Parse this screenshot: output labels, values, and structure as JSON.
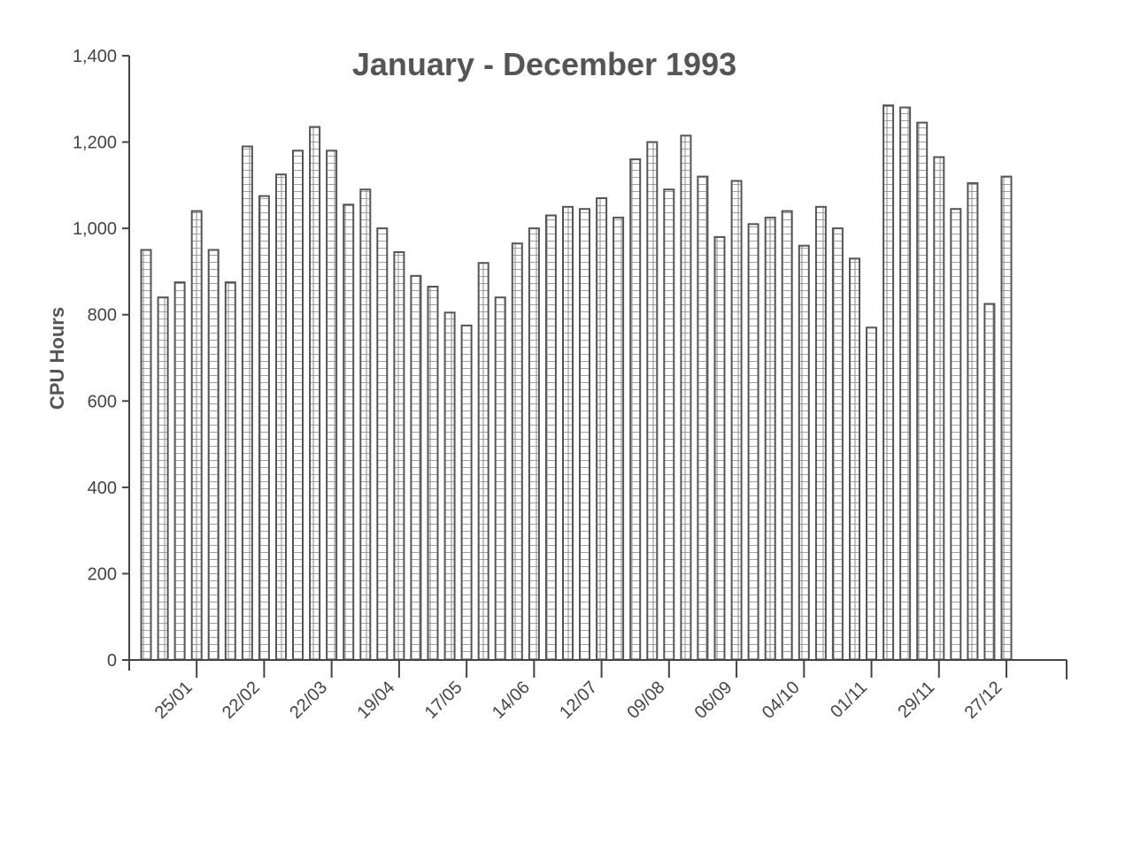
{
  "chart_data": {
    "type": "bar",
    "title": "January - December 1993",
    "xlabel": "",
    "ylabel": "CPU Hours",
    "ylim": [
      0,
      1400
    ],
    "yticks": [
      0,
      200,
      400,
      600,
      800,
      1000,
      1200,
      1400
    ],
    "ytick_labels": [
      "0",
      "200",
      "400",
      "600",
      "800",
      "1,000",
      "1,200",
      "1,400"
    ],
    "x_tick_labels": [
      "25/01",
      "22/02",
      "22/03",
      "19/04",
      "17/05",
      "14/06",
      "12/07",
      "09/08",
      "06/09",
      "04/10",
      "01/11",
      "29/11",
      "27/12"
    ],
    "x_tick_positions": [
      3,
      7,
      11,
      15,
      19,
      23,
      27,
      31,
      35,
      39,
      43,
      47,
      51
    ],
    "values": [
      950,
      840,
      875,
      1040,
      950,
      875,
      1190,
      1075,
      1125,
      1180,
      1235,
      1180,
      1055,
      1090,
      1000,
      945,
      890,
      865,
      805,
      775,
      920,
      840,
      965,
      1000,
      1030,
      1050,
      1045,
      1070,
      1025,
      1160,
      1200,
      1090,
      1215,
      1120,
      980,
      1110,
      1010,
      1025,
      1040,
      960,
      1050,
      1000,
      930,
      770,
      1285,
      1280,
      1245,
      1165,
      1045,
      1105,
      825,
      1120
    ],
    "grid": false,
    "legend": "none"
  }
}
